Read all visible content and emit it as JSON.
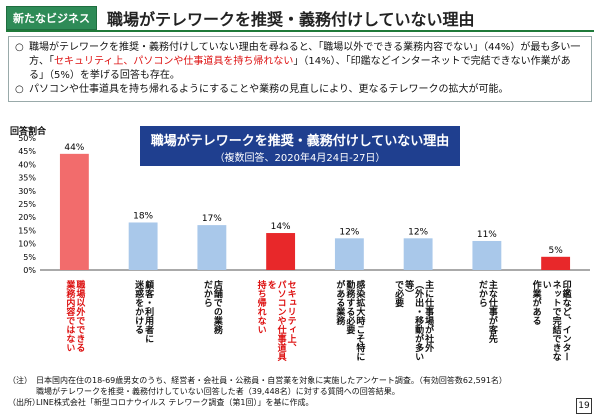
{
  "header": {
    "tag": "新たなビジネス",
    "title": "職場がテレワークを推奨・義務付けしていない理由"
  },
  "bullets": [
    {
      "mark": "○",
      "before": "職場がテレワークを推奨・義務付けしていない理由を尋ねると、「職場以外でできる業務内容でない」（44%）が最も多い一方、「",
      "highlight": "セキュリティ上、パソコンや仕事道具を持ち帰れない",
      "after": "」（14%）、「印鑑などインターネットで完結できない作業がある」（5%）を挙げる回答も存在。"
    },
    {
      "mark": "○",
      "before": "パソコンや仕事道具を持ち帰れるようにすることや業務の見直しにより、更なるテレワークの拡大が可能。",
      "highlight": "",
      "after": ""
    }
  ],
  "chart_title": {
    "line1": "職場がテレワークを推奨・義務付けしていない理由",
    "line2": "（複数回答、2020年4月24日-27日）"
  },
  "chart_data": {
    "type": "bar",
    "ylabel": "回答割合",
    "ylim": [
      0,
      50
    ],
    "yticks": [
      "0%",
      "5%",
      "10%",
      "15%",
      "20%",
      "25%",
      "30%",
      "35%",
      "40%",
      "45%",
      "50%"
    ],
    "categories": [
      "職場以外でできる\n業務内容ではない",
      "顧客・利用者に\n迷惑をかける",
      "店舗での業務\nだから",
      "セキュリティ上、\nパソコンや仕事道具を\n持ち帰れない",
      "感染拡大時こそ特に\n勤務する必要\nがある業務",
      "主に仕事場が社外\n（外出・移動が多い等）\nで必要",
      "主な仕事が客先\nだから",
      "印鑑など、インター\nネットで完結できない\n作業がある"
    ],
    "values": [
      44,
      18,
      17,
      14,
      12,
      12,
      11,
      5
    ],
    "value_labels": [
      "44%",
      "18%",
      "17%",
      "14%",
      "12%",
      "12%",
      "11%",
      "5%"
    ],
    "colors": [
      "#f26c6c",
      "#a9c8ea",
      "#a9c8ea",
      "#e8282a",
      "#a9c8ea",
      "#a9c8ea",
      "#a9c8ea",
      "#e8282a"
    ],
    "highlight_indices": [
      0,
      3
    ]
  },
  "notes": [
    {
      "label": "（注）",
      "text": "日本国内在住の18-69歳男女のうち、経営者・会社員・公務員・自営業を対象に実施したアンケート調査。（有効回答数62,591名）"
    },
    {
      "label": "",
      "text": "職場がテレワークを推奨・義務付けしていない回答した者（39,448名）に対する質問への回答結果。"
    },
    {
      "label": "（出所）",
      "text": "LINE株式会社「新型コロナウイルス テレワーク調査（第1回）」を基に作成。"
    }
  ],
  "page_number": "19"
}
